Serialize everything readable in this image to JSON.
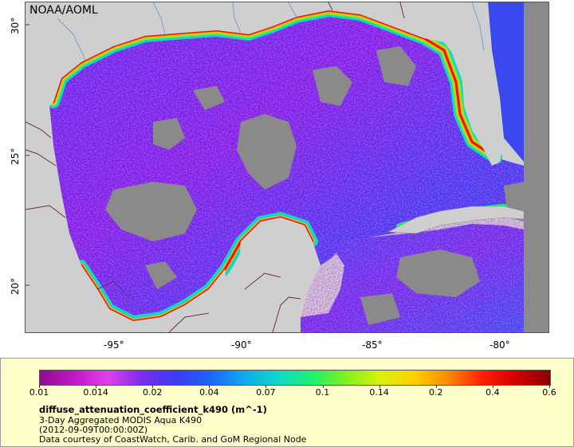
{
  "map": {
    "source_label": "NOAA/AOML",
    "lon_labels": [
      "-95°",
      "-90°",
      "-85°",
      "-80°"
    ],
    "lat_labels": [
      "30°",
      "25°",
      "20°"
    ],
    "colors": {
      "land": "#cfcfcf",
      "nodata": "#8a8a8a",
      "border": "#6b2a5a",
      "river": "#7aa0c8"
    }
  },
  "legend": {
    "colorbar_stops": [
      "#8e0c8c",
      "#c018c8",
      "#e040e8",
      "#7a2cf0",
      "#3c3cf0",
      "#1c64f8",
      "#10a8f0",
      "#10d8c8",
      "#20f070",
      "#80f020",
      "#d8f010",
      "#ffd000",
      "#ff8a00",
      "#ff2000",
      "#d00000",
      "#8a0000"
    ],
    "tick_labels": [
      "0.01",
      "0.014",
      "0.02",
      "0.04",
      "0.07",
      "0.1",
      "0.14",
      "0.2",
      "0.4",
      "0.6"
    ],
    "variable": "diffuse_attenuation_coefficient_k490 (m^-1)",
    "dataset": "3-Day Aggregated MODIS Aqua K490",
    "time": "(2012-09-09T00:00:00Z)",
    "credit": "Data courtesy of CoastWatch, Carib. and GoM Regional Node"
  }
}
